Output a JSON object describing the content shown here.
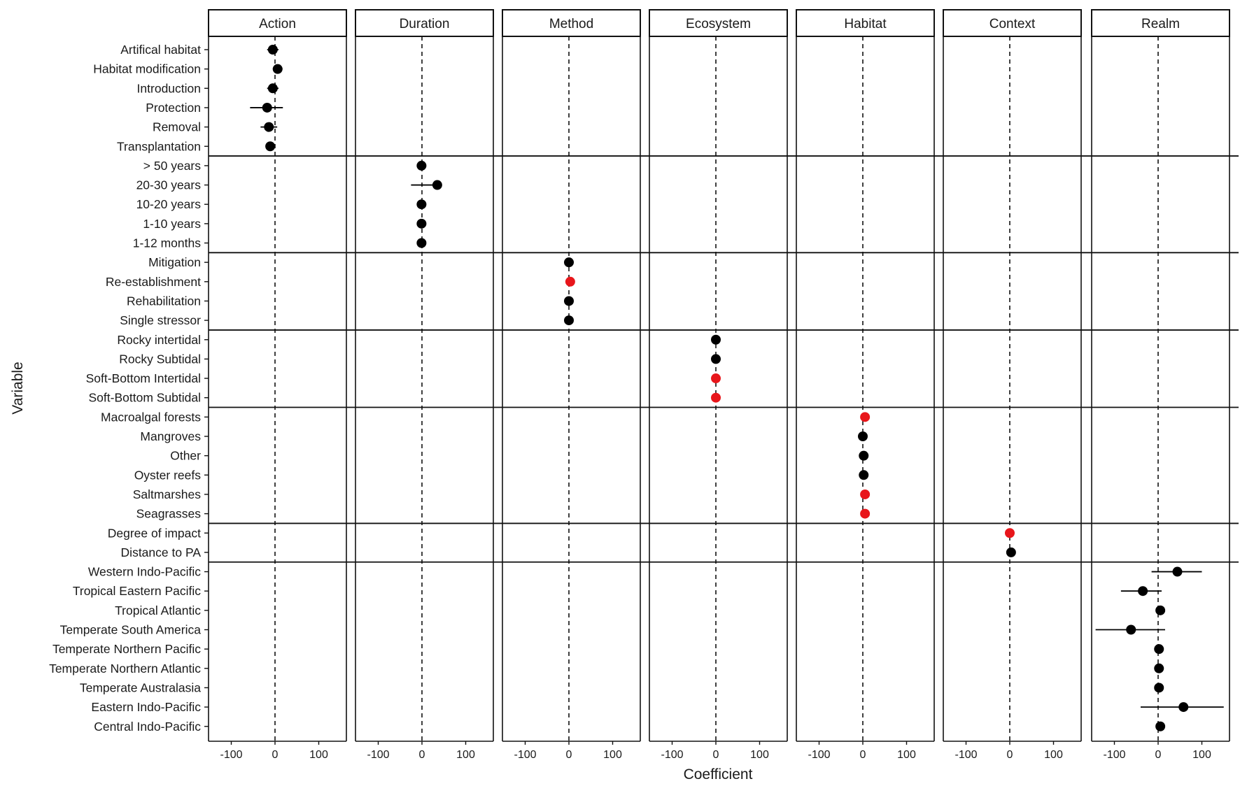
{
  "chart_data": {
    "type": "scatter",
    "subtype": "faceted coefficient plot with horizontal error bars",
    "xlabel": "Coefficient",
    "ylabel": "Variable",
    "xticks": [
      -100,
      0,
      100
    ],
    "xlim": [
      -155,
      165
    ],
    "reference_line_x": 0,
    "colors": {
      "significant": "#e8161b",
      "not_significant": "#000000"
    },
    "facets": [
      "Action",
      "Duration",
      "Method",
      "Ecosystem",
      "Habitat",
      "Context",
      "Realm"
    ],
    "groups": [
      {
        "facet": "Action",
        "rows": [
          {
            "label": "Artifical habitat",
            "x": -5,
            "lo": -18,
            "hi": 8,
            "significant": false
          },
          {
            "label": "Habitat modification",
            "x": 6,
            "lo": -5,
            "hi": 17,
            "significant": false
          },
          {
            "label": "Introduction",
            "x": -5,
            "lo": -18,
            "hi": 8,
            "significant": false
          },
          {
            "label": "Protection",
            "x": -18,
            "lo": -57,
            "hi": 18,
            "significant": false
          },
          {
            "label": "Removal",
            "x": -14,
            "lo": -33,
            "hi": 5,
            "significant": false
          },
          {
            "label": "Transplantation",
            "x": -11,
            "lo": -21,
            "hi": 0,
            "significant": false
          }
        ]
      },
      {
        "facet": "Duration",
        "rows": [
          {
            "label": "> 50 years",
            "x": -1,
            "lo": -6,
            "hi": 4,
            "significant": false
          },
          {
            "label": "20-30 years",
            "x": 35,
            "lo": -25,
            "hi": 42,
            "significant": false
          },
          {
            "label": "10-20 years",
            "x": -1,
            "lo": -6,
            "hi": 4,
            "significant": false
          },
          {
            "label": "1-10 years",
            "x": -1,
            "lo": -6,
            "hi": 4,
            "significant": false
          },
          {
            "label": "1-12 months",
            "x": -1,
            "lo": -6,
            "hi": 4,
            "significant": false
          }
        ]
      },
      {
        "facet": "Method",
        "rows": [
          {
            "label": "Mitigation",
            "x": 0,
            "lo": -5,
            "hi": 5,
            "significant": false
          },
          {
            "label": "Re-establishment",
            "x": 3,
            "lo": -2,
            "hi": 7,
            "significant": true
          },
          {
            "label": "Rehabilitation",
            "x": 0,
            "lo": -5,
            "hi": 5,
            "significant": false
          },
          {
            "label": "Single stressor",
            "x": 0,
            "lo": -5,
            "hi": 5,
            "significant": false
          }
        ]
      },
      {
        "facet": "Ecosystem",
        "rows": [
          {
            "label": "Rocky intertidal",
            "x": 0,
            "lo": -5,
            "hi": 5,
            "significant": false
          },
          {
            "label": "Rocky Subtidal",
            "x": 0,
            "lo": -5,
            "hi": 5,
            "significant": false
          },
          {
            "label": "Soft-Bottom Intertidal",
            "x": 0,
            "lo": -5,
            "hi": 5,
            "significant": true
          },
          {
            "label": "Soft-Bottom Subtidal",
            "x": 0,
            "lo": -5,
            "hi": 5,
            "significant": true
          }
        ]
      },
      {
        "facet": "Habitat",
        "rows": [
          {
            "label": "Macroalgal forests",
            "x": 5,
            "lo": 0,
            "hi": 10,
            "significant": true
          },
          {
            "label": "Mangroves",
            "x": 0,
            "lo": -5,
            "hi": 5,
            "significant": false
          },
          {
            "label": "Other",
            "x": 2,
            "lo": -3,
            "hi": 7,
            "significant": false
          },
          {
            "label": "Oyster reefs",
            "x": 2,
            "lo": -3,
            "hi": 7,
            "significant": false
          },
          {
            "label": "Saltmarshes",
            "x": 5,
            "lo": 0,
            "hi": 10,
            "significant": true
          },
          {
            "label": "Seagrasses",
            "x": 5,
            "lo": 0,
            "hi": 10,
            "significant": true
          }
        ]
      },
      {
        "facet": "Context",
        "rows": [
          {
            "label": "Degree of impact",
            "x": 0,
            "lo": -5,
            "hi": 5,
            "significant": true
          },
          {
            "label": "Distance to PA",
            "x": 3,
            "lo": -2,
            "hi": 7,
            "significant": false
          }
        ]
      },
      {
        "facet": "Realm",
        "rows": [
          {
            "label": "Western Indo-Pacific",
            "x": 44,
            "lo": -15,
            "hi": 100,
            "significant": false
          },
          {
            "label": "Tropical Eastern Pacific",
            "x": -35,
            "lo": -85,
            "hi": 8,
            "significant": false
          },
          {
            "label": "Tropical Atlantic",
            "x": 5,
            "lo": -2,
            "hi": 12,
            "significant": false
          },
          {
            "label": "Temperate South America",
            "x": -62,
            "lo": -143,
            "hi": 16,
            "significant": false
          },
          {
            "label": "Temperate Northern Pacific",
            "x": 2,
            "lo": -5,
            "hi": 9,
            "significant": false
          },
          {
            "label": "Temperate Northern Atlantic",
            "x": 2,
            "lo": -5,
            "hi": 9,
            "significant": false
          },
          {
            "label": "Temperate Australasia",
            "x": 2,
            "lo": -5,
            "hi": 9,
            "significant": false
          },
          {
            "label": "Eastern Indo-Pacific",
            "x": 58,
            "lo": -40,
            "hi": 150,
            "significant": false
          },
          {
            "label": "Central Indo-Pacific",
            "x": 5,
            "lo": -2,
            "hi": 12,
            "significant": false
          }
        ]
      }
    ]
  }
}
